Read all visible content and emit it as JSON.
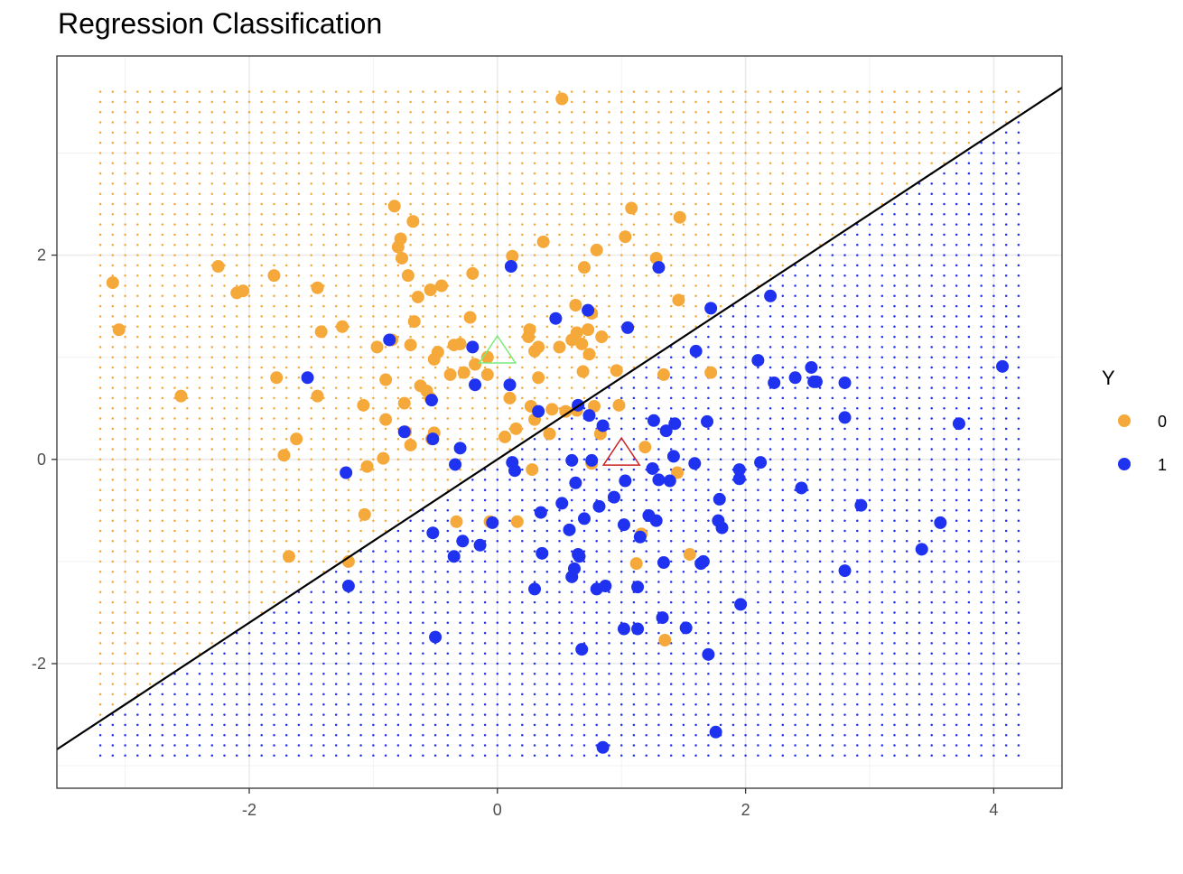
{
  "chart_data": {
    "type": "scatter",
    "title": "Regression Classification",
    "xlabel": "",
    "ylabel": "",
    "xlim": [
      -3.55,
      4.55
    ],
    "ylim": [
      -3.22,
      3.95
    ],
    "x_ticks": [
      -2,
      0,
      2,
      4
    ],
    "y_ticks": [
      -2,
      0,
      2
    ],
    "x_tick_labels": [
      "-2",
      "0",
      "2",
      "4"
    ],
    "y_tick_labels": [
      "-2",
      "0",
      "2"
    ],
    "grid": true,
    "legend": {
      "title": "Y",
      "position": "right",
      "entries": [
        "0",
        "1"
      ]
    },
    "colors": {
      "class_0": "#F5A93A",
      "class_1": "#1F32F0",
      "boundary": "#000000",
      "centroid_0": "#7CEB7C",
      "centroid_1": "#CC2222"
    },
    "decision_boundary": {
      "slope": 0.8,
      "intercept": 0.0
    },
    "background_grid": {
      "x_range": [
        -3.2,
        4.2
      ],
      "y_range": [
        -2.9,
        3.6
      ],
      "step": 0.1
    },
    "centroids": [
      {
        "label": "0",
        "x": 0.0,
        "y": 1.05
      },
      {
        "label": "1",
        "x": 1.0,
        "y": 0.05
      }
    ],
    "series": [
      {
        "name": "0",
        "points": [
          [
            -3.1,
            1.73
          ],
          [
            -3.05,
            1.27
          ],
          [
            -2.55,
            0.62
          ],
          [
            -2.25,
            1.89
          ],
          [
            -2.1,
            1.63
          ],
          [
            -2.05,
            1.65
          ],
          [
            -1.8,
            1.8
          ],
          [
            -1.78,
            0.8
          ],
          [
            -1.72,
            0.04
          ],
          [
            -1.68,
            -0.95
          ],
          [
            -1.62,
            0.2
          ],
          [
            -1.45,
            1.68
          ],
          [
            -1.45,
            0.62
          ],
          [
            -1.42,
            1.25
          ],
          [
            -1.25,
            1.3
          ],
          [
            -1.2,
            -1.0
          ],
          [
            -1.08,
            0.53
          ],
          [
            -1.07,
            -0.54
          ],
          [
            -1.05,
            -0.07
          ],
          [
            -0.97,
            1.1
          ],
          [
            -0.92,
            0.01
          ],
          [
            -0.9,
            0.39
          ],
          [
            -0.9,
            0.78
          ],
          [
            -0.85,
            1.17
          ],
          [
            -0.83,
            2.48
          ],
          [
            -0.8,
            2.08
          ],
          [
            -0.78,
            2.16
          ],
          [
            -0.77,
            1.97
          ],
          [
            -0.75,
            0.55
          ],
          [
            -0.74,
            0.27
          ],
          [
            -0.72,
            1.8
          ],
          [
            -0.7,
            1.12
          ],
          [
            -0.7,
            0.14
          ],
          [
            -0.68,
            2.33
          ],
          [
            -0.67,
            1.35
          ],
          [
            -0.64,
            1.59
          ],
          [
            -0.62,
            0.72
          ],
          [
            -0.57,
            0.67
          ],
          [
            -0.54,
            0.6
          ],
          [
            -0.54,
            1.66
          ],
          [
            -0.53,
            0.2
          ],
          [
            -0.51,
            0.26
          ],
          [
            -0.51,
            0.98
          ],
          [
            -0.48,
            1.05
          ],
          [
            -0.45,
            1.7
          ],
          [
            -0.38,
            0.83
          ],
          [
            -0.35,
            1.12
          ],
          [
            -0.33,
            -0.61
          ],
          [
            -0.3,
            1.13
          ],
          [
            -0.27,
            0.85
          ],
          [
            -0.22,
            1.39
          ],
          [
            -0.2,
            1.82
          ],
          [
            -0.18,
            0.93
          ],
          [
            -0.08,
            0.83
          ],
          [
            -0.08,
            1.0
          ],
          [
            -0.06,
            -0.61
          ],
          [
            0.06,
            0.22
          ],
          [
            0.1,
            0.6
          ],
          [
            0.12,
            1.99
          ],
          [
            0.15,
            0.3
          ],
          [
            0.16,
            -0.61
          ],
          [
            0.25,
            1.2
          ],
          [
            0.26,
            1.27
          ],
          [
            0.27,
            0.52
          ],
          [
            0.28,
            -0.1
          ],
          [
            0.3,
            1.06
          ],
          [
            0.3,
            0.39
          ],
          [
            0.33,
            0.8
          ],
          [
            0.33,
            1.1
          ],
          [
            0.37,
            2.13
          ],
          [
            0.42,
            0.25
          ],
          [
            0.44,
            0.49
          ],
          [
            0.5,
            1.1
          ],
          [
            0.52,
            3.53
          ],
          [
            0.55,
            0.47
          ],
          [
            0.6,
            1.17
          ],
          [
            0.63,
            1.51
          ],
          [
            0.64,
            1.24
          ],
          [
            0.64,
            0.48
          ],
          [
            0.68,
            1.13
          ],
          [
            0.69,
            0.86
          ],
          [
            0.7,
            1.88
          ],
          [
            0.73,
            1.27
          ],
          [
            0.74,
            1.03
          ],
          [
            0.76,
            1.43
          ],
          [
            0.76,
            -0.04
          ],
          [
            0.78,
            0.52
          ],
          [
            0.8,
            2.05
          ],
          [
            0.83,
            0.25
          ],
          [
            0.84,
            1.2
          ],
          [
            0.96,
            0.87
          ],
          [
            0.98,
            0.53
          ],
          [
            1.03,
            2.18
          ],
          [
            1.08,
            2.46
          ],
          [
            1.12,
            -1.02
          ],
          [
            1.16,
            -0.73
          ],
          [
            1.19,
            0.12
          ],
          [
            1.28,
            1.97
          ],
          [
            1.34,
            0.83
          ],
          [
            1.35,
            -1.77
          ],
          [
            1.45,
            -0.13
          ],
          [
            1.46,
            1.56
          ],
          [
            1.47,
            2.37
          ],
          [
            1.55,
            -0.93
          ],
          [
            1.72,
            0.85
          ]
        ]
      },
      {
        "name": "1",
        "points": [
          [
            -1.53,
            0.8
          ],
          [
            -1.22,
            -0.13
          ],
          [
            -1.2,
            -1.24
          ],
          [
            -0.87,
            1.17
          ],
          [
            -0.75,
            0.27
          ],
          [
            -0.53,
            0.58
          ],
          [
            -0.52,
            0.2
          ],
          [
            -0.52,
            -0.72
          ],
          [
            -0.5,
            -1.74
          ],
          [
            -0.35,
            -0.95
          ],
          [
            -0.34,
            -0.05
          ],
          [
            -0.3,
            0.11
          ],
          [
            -0.28,
            -0.8
          ],
          [
            -0.2,
            1.1
          ],
          [
            -0.18,
            0.73
          ],
          [
            -0.14,
            -0.84
          ],
          [
            -0.04,
            -0.62
          ],
          [
            0.1,
            0.73
          ],
          [
            0.11,
            1.89
          ],
          [
            0.12,
            -0.03
          ],
          [
            0.14,
            -0.11
          ],
          [
            0.3,
            -1.27
          ],
          [
            0.33,
            0.47
          ],
          [
            0.35,
            -0.52
          ],
          [
            0.36,
            -0.92
          ],
          [
            0.47,
            1.38
          ],
          [
            0.52,
            -0.43
          ],
          [
            0.58,
            -0.69
          ],
          [
            0.6,
            -0.01
          ],
          [
            0.6,
            -1.15
          ],
          [
            0.62,
            -1.07
          ],
          [
            0.63,
            -0.23
          ],
          [
            0.65,
            -0.93
          ],
          [
            0.65,
            0.53
          ],
          [
            0.66,
            -0.95
          ],
          [
            0.68,
            -1.86
          ],
          [
            0.7,
            -0.58
          ],
          [
            0.73,
            1.46
          ],
          [
            0.74,
            0.43
          ],
          [
            0.76,
            -0.01
          ],
          [
            0.8,
            -1.27
          ],
          [
            0.82,
            -0.46
          ],
          [
            0.85,
            0.33
          ],
          [
            0.85,
            -2.82
          ],
          [
            0.87,
            -1.24
          ],
          [
            0.94,
            -0.37
          ],
          [
            1.02,
            -0.64
          ],
          [
            1.03,
            -0.21
          ],
          [
            1.05,
            1.29
          ],
          [
            1.02,
            -1.66
          ],
          [
            1.13,
            -1.66
          ],
          [
            1.13,
            -1.25
          ],
          [
            1.15,
            -0.76
          ],
          [
            1.22,
            -0.55
          ],
          [
            1.25,
            -0.09
          ],
          [
            1.26,
            0.38
          ],
          [
            1.28,
            -0.6
          ],
          [
            1.3,
            -0.2
          ],
          [
            1.3,
            1.88
          ],
          [
            1.33,
            -1.55
          ],
          [
            1.34,
            -1.01
          ],
          [
            1.36,
            0.28
          ],
          [
            1.39,
            -0.21
          ],
          [
            1.42,
            0.03
          ],
          [
            1.43,
            0.35
          ],
          [
            1.52,
            -1.65
          ],
          [
            1.59,
            -0.04
          ],
          [
            1.6,
            1.06
          ],
          [
            1.64,
            -1.02
          ],
          [
            1.66,
            -1.0
          ],
          [
            1.69,
            0.37
          ],
          [
            1.7,
            -1.91
          ],
          [
            1.72,
            1.48
          ],
          [
            1.76,
            -2.67
          ],
          [
            1.78,
            -0.6
          ],
          [
            1.79,
            -0.39
          ],
          [
            1.81,
            -0.67
          ],
          [
            1.95,
            -0.19
          ],
          [
            1.95,
            -0.1
          ],
          [
            1.96,
            -1.42
          ],
          [
            2.1,
            0.97
          ],
          [
            2.12,
            -0.03
          ],
          [
            2.2,
            1.6
          ],
          [
            2.23,
            0.75
          ],
          [
            2.4,
            0.8
          ],
          [
            2.45,
            -0.28
          ],
          [
            2.53,
            0.9
          ],
          [
            2.55,
            0.76
          ],
          [
            2.57,
            0.76
          ],
          [
            2.8,
            0.75
          ],
          [
            2.8,
            0.41
          ],
          [
            2.8,
            -1.09
          ],
          [
            2.93,
            -0.45
          ],
          [
            3.42,
            -0.88
          ],
          [
            3.57,
            -0.62
          ],
          [
            3.72,
            0.35
          ],
          [
            4.07,
            0.91
          ]
        ]
      }
    ]
  }
}
